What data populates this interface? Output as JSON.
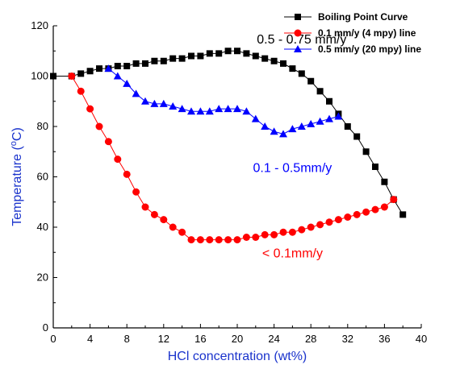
{
  "chart_data": {
    "type": "scatter",
    "xlabel": "HCl concentration (wt%)",
    "ylabel": "Temperature (°C)",
    "ylabel_parts": {
      "pre": "Temperature (",
      "sup": "o",
      "post": "C)"
    },
    "xlim": [
      0,
      40
    ],
    "ylim": [
      0,
      120
    ],
    "xticks": [
      0,
      4,
      8,
      12,
      16,
      20,
      24,
      28,
      32,
      36,
      40
    ],
    "yticks": [
      0,
      20,
      40,
      60,
      80,
      100,
      120
    ],
    "grid": false,
    "legend_position": "top-right",
    "series": [
      {
        "name": "Boiling Point Curve",
        "color": "#000000",
        "marker": "square",
        "x": [
          0,
          2,
          3,
          4,
          5,
          6,
          7,
          8,
          9,
          10,
          11,
          12,
          13,
          14,
          15,
          16,
          17,
          18,
          19,
          20,
          21,
          22,
          23,
          24,
          25,
          26,
          27,
          28,
          29,
          30,
          31,
          32,
          33,
          34,
          35,
          36,
          37,
          38
        ],
        "y": [
          100,
          100,
          101,
          102,
          103,
          103,
          104,
          104,
          105,
          105,
          106,
          106,
          107,
          107,
          108,
          108,
          109,
          109,
          110,
          110,
          109,
          108,
          107,
          106,
          105,
          103,
          101,
          98,
          94,
          90,
          85,
          80,
          76,
          70,
          64,
          58,
          51,
          45
        ]
      },
      {
        "name": "0.1 mm/y (4 mpy) line",
        "color": "#ff0000",
        "marker": "circle",
        "x": [
          2,
          3,
          4,
          5,
          6,
          7,
          8,
          9,
          10,
          11,
          12,
          13,
          14,
          15,
          16,
          17,
          18,
          19,
          20,
          21,
          22,
          23,
          24,
          25,
          26,
          27,
          28,
          29,
          30,
          31,
          32,
          33,
          34,
          35,
          36,
          37
        ],
        "y": [
          100,
          94,
          87,
          80,
          74,
          67,
          61,
          54,
          48,
          45,
          43,
          40,
          38,
          35,
          35,
          35,
          35,
          35,
          35,
          36,
          36,
          37,
          37,
          38,
          38,
          39,
          40,
          41,
          42,
          43,
          44,
          45,
          46,
          47,
          48,
          51
        ]
      },
      {
        "name": "0.5 mm/y (20 mpy) line",
        "color": "#0000ff",
        "marker": "triangle",
        "x": [
          6,
          7,
          8,
          9,
          10,
          11,
          12,
          13,
          14,
          15,
          16,
          17,
          18,
          19,
          20,
          21,
          22,
          23,
          24,
          25,
          26,
          27,
          28,
          29,
          30,
          31
        ],
        "y": [
          103,
          100,
          97,
          93,
          90,
          89,
          89,
          88,
          87,
          86,
          86,
          86,
          87,
          87,
          87,
          86,
          83,
          80,
          78,
          77,
          79,
          80,
          81,
          82,
          83,
          84
        ]
      }
    ],
    "annotations": [
      {
        "text": "0.5 - 0.75 mm/y",
        "x": 27,
        "y": 113,
        "color": "#000000"
      },
      {
        "text": "0.1 - 0.5mm/y",
        "x": 26,
        "y": 62,
        "color": "#0000ff"
      },
      {
        "text": "< 0.1mm/y",
        "x": 26,
        "y": 28,
        "color": "#ff0000"
      }
    ]
  }
}
